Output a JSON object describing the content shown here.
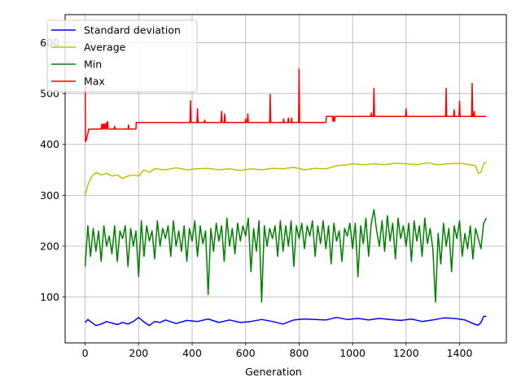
{
  "chart_data": {
    "type": "line",
    "title": "",
    "xlabel": "Generation",
    "ylabel": "",
    "xlim": [
      -75,
      1575
    ],
    "ylim": [
      10,
      655
    ],
    "xticks": [
      0,
      200,
      400,
      600,
      800,
      1000,
      1200,
      1400
    ],
    "yticks": [
      100,
      200,
      300,
      400,
      500,
      600
    ],
    "grid": true,
    "legend_position": "upper-left",
    "series": [
      {
        "name": "Standard deviation",
        "color": "#0000ff",
        "x": [
          0,
          10,
          20,
          30,
          40,
          60,
          80,
          100,
          120,
          140,
          160,
          180,
          200,
          220,
          240,
          260,
          280,
          300,
          340,
          380,
          420,
          460,
          500,
          540,
          580,
          620,
          660,
          700,
          740,
          780,
          820,
          860,
          900,
          940,
          980,
          1020,
          1060,
          1100,
          1140,
          1180,
          1220,
          1260,
          1300,
          1340,
          1380,
          1420,
          1460,
          1470,
          1480,
          1490,
          1500
        ],
        "y": [
          50,
          56,
          52,
          48,
          44,
          47,
          52,
          49,
          46,
          50,
          47,
          52,
          60,
          51,
          44,
          52,
          50,
          55,
          48,
          54,
          52,
          57,
          50,
          55,
          50,
          52,
          56,
          52,
          47,
          55,
          57,
          56,
          55,
          60,
          56,
          58,
          55,
          58,
          56,
          54,
          57,
          52,
          55,
          59,
          58,
          55,
          46,
          45,
          50,
          62,
          62
        ]
      },
      {
        "name": "Average",
        "color": "#bfbf00",
        "x": [
          0,
          10,
          20,
          30,
          40,
          60,
          80,
          100,
          120,
          140,
          160,
          180,
          200,
          220,
          240,
          260,
          300,
          340,
          380,
          420,
          460,
          500,
          540,
          580,
          620,
          660,
          700,
          740,
          780,
          820,
          860,
          900,
          940,
          980,
          1000,
          1040,
          1080,
          1120,
          1160,
          1200,
          1240,
          1280,
          1320,
          1360,
          1400,
          1440,
          1460,
          1470,
          1480,
          1490,
          1500
        ],
        "y": [
          300,
          320,
          333,
          340,
          345,
          340,
          343,
          338,
          340,
          333,
          338,
          340,
          338,
          350,
          345,
          352,
          350,
          354,
          350,
          352,
          353,
          350,
          352,
          349,
          352,
          350,
          353,
          352,
          355,
          350,
          353,
          352,
          358,
          360,
          362,
          360,
          362,
          360,
          363,
          362,
          360,
          364,
          360,
          362,
          363,
          360,
          358,
          343,
          345,
          362,
          365
        ]
      },
      {
        "name": "Min",
        "color": "#008000",
        "x": [
          0,
          10,
          20,
          30,
          40,
          50,
          60,
          70,
          80,
          90,
          100,
          110,
          120,
          130,
          140,
          150,
          160,
          170,
          180,
          190,
          200,
          210,
          220,
          230,
          240,
          250,
          260,
          270,
          280,
          290,
          300,
          310,
          320,
          330,
          340,
          350,
          360,
          370,
          380,
          390,
          400,
          410,
          420,
          430,
          440,
          450,
          460,
          470,
          480,
          490,
          500,
          510,
          520,
          530,
          540,
          550,
          560,
          570,
          580,
          590,
          600,
          610,
          620,
          630,
          640,
          650,
          660,
          670,
          680,
          690,
          700,
          710,
          720,
          730,
          740,
          750,
          760,
          770,
          780,
          790,
          800,
          810,
          820,
          830,
          840,
          850,
          860,
          870,
          880,
          890,
          900,
          910,
          920,
          930,
          940,
          950,
          960,
          970,
          980,
          990,
          1000,
          1010,
          1020,
          1030,
          1040,
          1050,
          1060,
          1070,
          1080,
          1090,
          1100,
          1110,
          1120,
          1130,
          1140,
          1150,
          1160,
          1170,
          1180,
          1190,
          1200,
          1210,
          1220,
          1230,
          1240,
          1250,
          1260,
          1270,
          1280,
          1290,
          1300,
          1310,
          1320,
          1330,
          1340,
          1350,
          1360,
          1370,
          1380,
          1390,
          1400,
          1410,
          1420,
          1430,
          1440,
          1450,
          1460,
          1470,
          1480,
          1490,
          1500
        ],
        "y": [
          160,
          240,
          180,
          235,
          190,
          230,
          170,
          240,
          200,
          220,
          185,
          240,
          170,
          230,
          215,
          240,
          160,
          235,
          200,
          230,
          140,
          250,
          180,
          240,
          210,
          230,
          175,
          250,
          200,
          235,
          215,
          240,
          180,
          250,
          200,
          230,
          190,
          240,
          170,
          235,
          210,
          250,
          180,
          240,
          205,
          230,
          105,
          235,
          190,
          245,
          210,
          240,
          170,
          255,
          200,
          235,
          185,
          245,
          210,
          240,
          220,
          255,
          150,
          235,
          190,
          250,
          90,
          240,
          200,
          235,
          215,
          240,
          180,
          250,
          190,
          240,
          200,
          250,
          160,
          240,
          215,
          245,
          195,
          240,
          220,
          250,
          180,
          240,
          205,
          250,
          195,
          240,
          165,
          245,
          210,
          230,
          170,
          235,
          220,
          245,
          195,
          245,
          140,
          240,
          205,
          255,
          180,
          245,
          272,
          230,
          200,
          250,
          190,
          260,
          210,
          245,
          175,
          255,
          215,
          240,
          200,
          245,
          170,
          250,
          210,
          240,
          180,
          255,
          205,
          235,
          195,
          90,
          225,
          165,
          245,
          200,
          235,
          150,
          240,
          215,
          250,
          180,
          225,
          195,
          240,
          175,
          235,
          215,
          195,
          245,
          255
        ]
      },
      {
        "name": "Max",
        "color": "#ff0000",
        "x": [
          0,
          1,
          2,
          4,
          6,
          8,
          10,
          12,
          14,
          16,
          20,
          40,
          60,
          62,
          64,
          68,
          70,
          72,
          76,
          78,
          80,
          84,
          86,
          90,
          100,
          108,
          110,
          112,
          120,
          160,
          162,
          164,
          166,
          170,
          190,
          191,
          392,
          394,
          396,
          418,
          420,
          422,
          445,
          447,
          449,
          508,
          510,
          512,
          520,
          522,
          524,
          598,
          600,
          602,
          606,
          608,
          610,
          690,
          692,
          694,
          740,
          742,
          744,
          758,
          760,
          762,
          770,
          772,
          774,
          798,
          800,
          802,
          900,
          902,
          925,
          927,
          929,
          933,
          935,
          1068,
          1070,
          1072,
          1078,
          1080,
          1082,
          1198,
          1200,
          1202,
          1348,
          1350,
          1352,
          1378,
          1380,
          1382,
          1398,
          1400,
          1402,
          1445,
          1447,
          1449,
          1453,
          1455,
          1457,
          1500
        ],
        "y": [
          540,
          405,
          413,
          408,
          412,
          420,
          420,
          428,
          430,
          429,
          430,
          430,
          430,
          440,
          430,
          440,
          430,
          440,
          430,
          442,
          430,
          445,
          430,
          430,
          430,
          430,
          436,
          430,
          430,
          430,
          438,
          430,
          430,
          430,
          430,
          443,
          443,
          486,
          443,
          443,
          470,
          443,
          443,
          448,
          443,
          443,
          465,
          443,
          443,
          460,
          443,
          443,
          450,
          443,
          443,
          460,
          443,
          443,
          498,
          443,
          443,
          450,
          443,
          443,
          452,
          443,
          443,
          452,
          443,
          443,
          548,
          443,
          443,
          455,
          455,
          445,
          455,
          445,
          455,
          455,
          462,
          455,
          455,
          510,
          455,
          455,
          470,
          455,
          455,
          510,
          455,
          455,
          468,
          455,
          455,
          485,
          455,
          455,
          520,
          455,
          455,
          465,
          455,
          455
        ]
      }
    ]
  }
}
